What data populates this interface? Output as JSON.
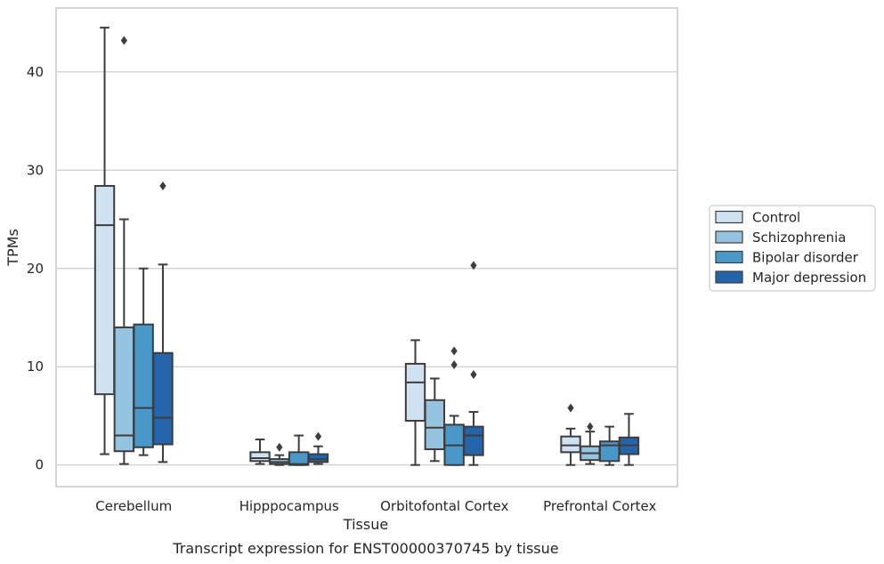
{
  "chart_data": {
    "type": "box",
    "title": "",
    "caption": "Transcript expression for ENST00000370745 by tissue",
    "xlabel": "Tissue",
    "ylabel": "TPMs",
    "ylim": [
      -2.2,
      46.5
    ],
    "yticks": [
      0,
      10,
      20,
      30,
      40
    ],
    "grid": "horizontal",
    "legend_position": "right",
    "categories": [
      "Cerebellum",
      "Hipppocampus",
      "Orbitofontal Cortex",
      "Prefrontal Cortex"
    ],
    "series": [
      {
        "name": "Control",
        "color": "#d0e1f2",
        "boxes": [
          {
            "whisker_low": 1.1,
            "q1": 7.2,
            "median": 24.4,
            "q3": 28.4,
            "whisker_high": 44.5,
            "outliers": []
          },
          {
            "whisker_low": 0.1,
            "q1": 0.4,
            "median": 0.7,
            "q3": 1.3,
            "whisker_high": 2.6,
            "outliers": []
          },
          {
            "whisker_low": 0.0,
            "q1": 4.5,
            "median": 8.4,
            "q3": 10.3,
            "whisker_high": 12.7,
            "outliers": []
          },
          {
            "whisker_low": 0.0,
            "q1": 1.3,
            "median": 2.0,
            "q3": 2.9,
            "whisker_high": 3.7,
            "outliers": [
              5.8
            ]
          }
        ]
      },
      {
        "name": "Schizophrenia",
        "color": "#94c4df",
        "boxes": [
          {
            "whisker_low": 0.1,
            "q1": 1.4,
            "median": 3.0,
            "q3": 14.0,
            "whisker_high": 25.0,
            "outliers": [
              43.2
            ]
          },
          {
            "whisker_low": 0.0,
            "q1": 0.1,
            "median": 0.3,
            "q3": 0.6,
            "whisker_high": 1.0,
            "outliers": [
              1.8
            ]
          },
          {
            "whisker_low": 0.4,
            "q1": 1.6,
            "median": 3.8,
            "q3": 6.6,
            "whisker_high": 8.8,
            "outliers": []
          },
          {
            "whisker_low": 0.1,
            "q1": 0.5,
            "median": 1.2,
            "q3": 1.9,
            "whisker_high": 3.4,
            "outliers": [
              3.9
            ]
          }
        ]
      },
      {
        "name": "Bipolar disorder",
        "color": "#4a98c9",
        "boxes": [
          {
            "whisker_low": 1.0,
            "q1": 1.8,
            "median": 5.8,
            "q3": 14.3,
            "whisker_high": 20.0,
            "outliers": []
          },
          {
            "whisker_low": 0.0,
            "q1": 0.0,
            "median": 0.1,
            "q3": 1.3,
            "whisker_high": 3.0,
            "outliers": []
          },
          {
            "whisker_low": 0.0,
            "q1": 0.0,
            "median": 2.0,
            "q3": 4.1,
            "whisker_high": 5.0,
            "outliers": [
              10.2,
              11.6
            ]
          },
          {
            "whisker_low": 0.0,
            "q1": 0.4,
            "median": 2.0,
            "q3": 2.4,
            "whisker_high": 3.9,
            "outliers": []
          }
        ]
      },
      {
        "name": "Major depression",
        "color": "#2464ab",
        "boxes": [
          {
            "whisker_low": 0.3,
            "q1": 2.1,
            "median": 4.8,
            "q3": 11.4,
            "whisker_high": 20.4,
            "outliers": [
              28.4
            ]
          },
          {
            "whisker_low": 0.1,
            "q1": 0.3,
            "median": 0.6,
            "q3": 1.1,
            "whisker_high": 1.9,
            "outliers": [
              2.9
            ]
          },
          {
            "whisker_low": 0.0,
            "q1": 1.0,
            "median": 3.0,
            "q3": 3.9,
            "whisker_high": 5.4,
            "outliers": [
              9.2,
              20.3
            ]
          },
          {
            "whisker_low": 0.0,
            "q1": 1.1,
            "median": 2.0,
            "q3": 2.8,
            "whisker_high": 5.2,
            "outliers": []
          }
        ]
      }
    ]
  }
}
